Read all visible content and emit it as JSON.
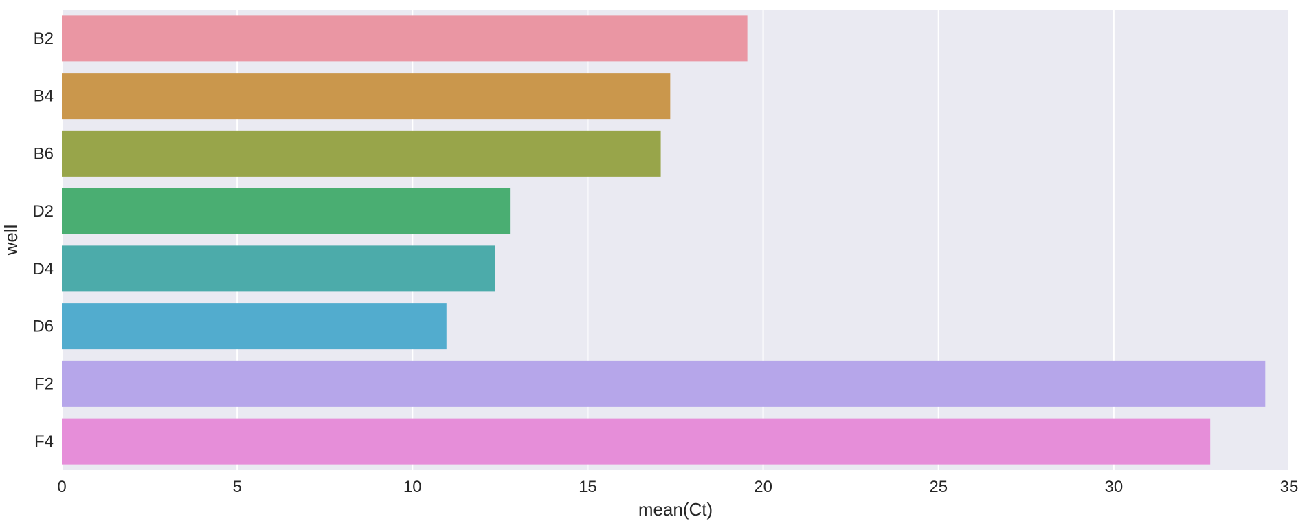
{
  "chart_data": {
    "type": "bar",
    "orientation": "horizontal",
    "categories": [
      "B2",
      "B4",
      "B6",
      "D2",
      "D4",
      "D6",
      "F2",
      "F4"
    ],
    "values": [
      19.55,
      17.35,
      17.08,
      12.78,
      12.35,
      10.97,
      34.32,
      32.75
    ],
    "colors": [
      "#ea96a3",
      "#ca974c",
      "#98a54a",
      "#4aae72",
      "#4cabaa",
      "#52acce",
      "#b6a6ea",
      "#e68ed9"
    ],
    "xlabel": "mean(Ct)",
    "ylabel": "well",
    "xlim": [
      0,
      35
    ],
    "xticks": [
      0,
      5,
      10,
      15,
      20,
      25,
      30,
      35
    ],
    "grid": true,
    "background": "#eaeaf2",
    "gridline_color": "#ffffff"
  }
}
